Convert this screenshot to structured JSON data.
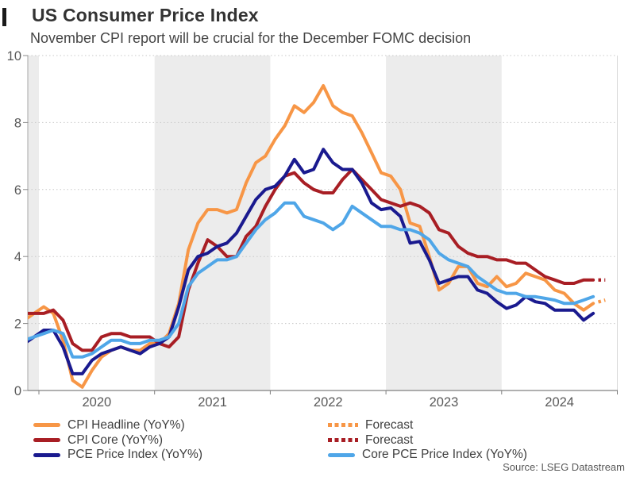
{
  "header": {
    "title": "US Consumer Price Index",
    "subtitle": "November CPI report will be crucial for the December FOMC decision"
  },
  "chart_data": {
    "type": "line",
    "title": "US Consumer Price Index",
    "subtitle": "November CPI report will be crucial for the December FOMC decision",
    "xlabel": "",
    "ylabel": "",
    "legend_position": "bottom",
    "y_axis": {
      "min": 0,
      "max": 10,
      "ticks": [
        0,
        2,
        4,
        6,
        8,
        10
      ]
    },
    "x_axis": {
      "year_ticks": [
        2020,
        2021,
        2022,
        2023,
        2024,
        2025
      ],
      "year_labels": [
        "2020",
        "2021",
        "2022",
        "2023",
        "2024"
      ],
      "start_month": "2019-11",
      "end_month": "2024-10",
      "frequency": "monthly"
    },
    "shaded_year_spans": [
      [
        2019,
        2020
      ],
      [
        2021,
        2022
      ],
      [
        2023,
        2024
      ]
    ],
    "colors": {
      "band": "#ECECEC",
      "grid": "#C8C8C8"
    },
    "series": [
      {
        "name": "CPI Headline (YoY%)",
        "color": "#F79646",
        "values": [
          2.1,
          2.3,
          2.5,
          2.3,
          1.5,
          0.3,
          0.1,
          0.6,
          1.0,
          1.2,
          1.3,
          1.2,
          1.2,
          1.4,
          1.4,
          1.7,
          2.6,
          4.2,
          5.0,
          5.4,
          5.4,
          5.3,
          5.4,
          6.2,
          6.8,
          7.0,
          7.5,
          7.9,
          8.5,
          8.3,
          8.6,
          9.1,
          8.5,
          8.3,
          8.2,
          7.7,
          7.1,
          6.5,
          6.4,
          6.0,
          5.0,
          4.9,
          4.0,
          3.0,
          3.2,
          3.7,
          3.7,
          3.2,
          3.1,
          3.4,
          3.1,
          3.2,
          3.5,
          3.4,
          3.3,
          3.0,
          2.9,
          2.6,
          2.4,
          2.6
        ]
      },
      {
        "name": "CPI Core (YoY%)",
        "color": "#A81E24",
        "values": [
          2.3,
          2.3,
          2.3,
          2.4,
          2.1,
          1.4,
          1.2,
          1.2,
          1.6,
          1.7,
          1.7,
          1.6,
          1.6,
          1.6,
          1.4,
          1.3,
          1.6,
          3.0,
          3.8,
          4.5,
          4.3,
          4.0,
          4.0,
          4.6,
          4.9,
          5.5,
          6.0,
          6.4,
          6.5,
          6.2,
          6.0,
          5.9,
          5.9,
          6.3,
          6.6,
          6.3,
          6.0,
          5.7,
          5.6,
          5.5,
          5.6,
          5.5,
          5.3,
          4.8,
          4.7,
          4.3,
          4.1,
          4.0,
          4.0,
          3.9,
          3.9,
          3.8,
          3.8,
          3.6,
          3.4,
          3.3,
          3.2,
          3.2,
          3.3,
          3.3
        ]
      },
      {
        "name": "PCE Price Index (YoY%)",
        "color": "#1A1A8F",
        "values": [
          1.4,
          1.6,
          1.8,
          1.8,
          1.3,
          0.5,
          0.5,
          0.9,
          1.1,
          1.2,
          1.3,
          1.2,
          1.1,
          1.3,
          1.4,
          1.6,
          2.5,
          3.6,
          4.0,
          4.1,
          4.3,
          4.4,
          4.7,
          5.2,
          5.7,
          6.0,
          6.1,
          6.4,
          6.9,
          6.5,
          6.6,
          7.2,
          6.8,
          6.6,
          6.6,
          6.2,
          5.6,
          5.4,
          5.45,
          5.2,
          4.4,
          4.45,
          3.9,
          3.2,
          3.3,
          3.4,
          3.4,
          3.0,
          2.9,
          2.65,
          2.45,
          2.55,
          2.8,
          2.65,
          2.6,
          2.4,
          2.4,
          2.4,
          2.1,
          2.3
        ]
      },
      {
        "name": "Core PCE Price Index (YoY%)",
        "color": "#4FA6E8",
        "values": [
          1.5,
          1.6,
          1.7,
          1.8,
          1.7,
          1.0,
          1.0,
          1.1,
          1.3,
          1.5,
          1.5,
          1.4,
          1.4,
          1.5,
          1.5,
          1.6,
          2.0,
          3.1,
          3.5,
          3.7,
          3.9,
          3.9,
          4.0,
          4.4,
          4.8,
          5.1,
          5.3,
          5.6,
          5.6,
          5.2,
          5.1,
          5.0,
          4.8,
          5.0,
          5.5,
          5.3,
          5.1,
          4.9,
          4.9,
          4.8,
          4.8,
          4.7,
          4.5,
          4.1,
          3.9,
          3.8,
          3.7,
          3.4,
          3.2,
          3.0,
          2.9,
          2.9,
          2.8,
          2.8,
          2.75,
          2.7,
          2.6,
          2.6,
          2.7,
          2.8
        ]
      }
    ],
    "forecasts": [
      {
        "series": "CPI Headline (YoY%)",
        "label": "Forecast",
        "month": "2024-11",
        "value": 2.7,
        "color": "#F79646"
      },
      {
        "series": "CPI Core (YoY%)",
        "label": "Forecast",
        "month": "2024-11",
        "value": 3.3,
        "color": "#A81E24"
      }
    ]
  },
  "legend": {
    "left": [
      {
        "label": "CPI Headline (YoY%)",
        "color": "#F79646",
        "style": "solid"
      },
      {
        "label": "CPI Core (YoY%)",
        "color": "#A81E24",
        "style": "solid"
      },
      {
        "label": "PCE Price Index (YoY%)",
        "color": "#1A1A8F",
        "style": "solid"
      }
    ],
    "right": [
      {
        "label": "Forecast",
        "color": "#F79646",
        "style": "dotted"
      },
      {
        "label": "Forecast",
        "color": "#A81E24",
        "style": "dotted"
      },
      {
        "label": "Core PCE Price Index (YoY%)",
        "color": "#4FA6E8",
        "style": "solid"
      }
    ]
  },
  "source": {
    "text": "Source: LSEG Datastream"
  }
}
